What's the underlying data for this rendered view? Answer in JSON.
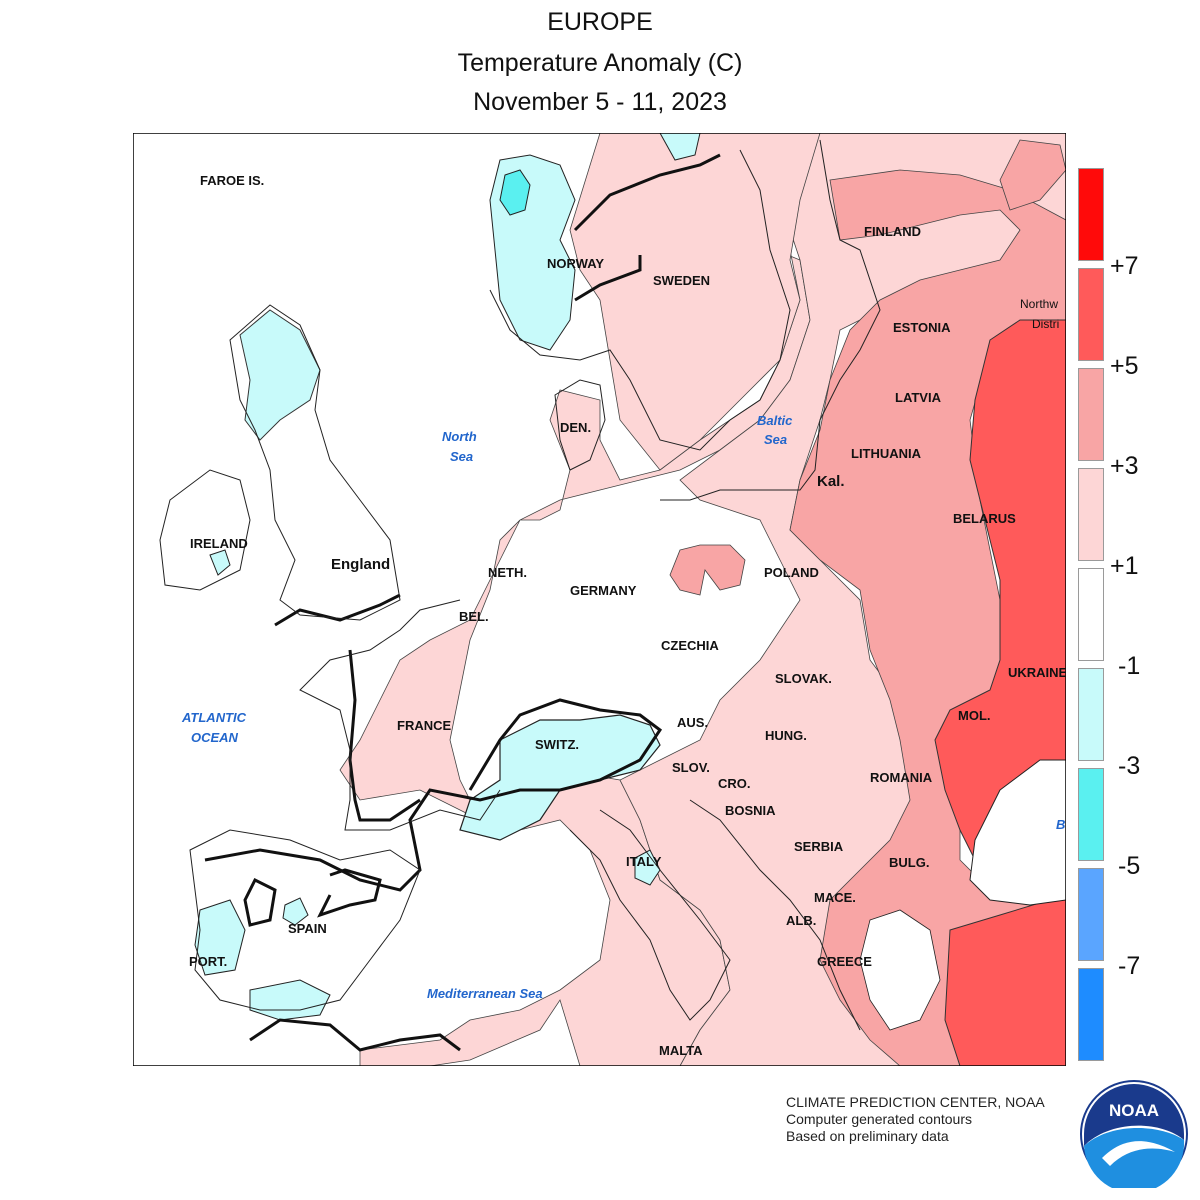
{
  "title": {
    "line1": "EUROPE",
    "line2": "Temperature Anomaly (C)",
    "line3": "November 5 - 11, 2023"
  },
  "legend": {
    "colors": [
      "#ff0a0a",
      "#ff5a5a",
      "#f8a5a5",
      "#fdd6d6",
      "#ffffff",
      "#c8fafa",
      "#5af0f0",
      "#5aa5ff",
      "#1e8cff"
    ],
    "labels": [
      "+7",
      "+5",
      "+3",
      "+1",
      "-1",
      "-3",
      "-5",
      "-7"
    ]
  },
  "map_labels": {
    "faroe": "FAROE IS.",
    "norway": "NORWAY",
    "sweden": "SWEDEN",
    "finland": "FINLAND",
    "estonia": "ESTONIA",
    "northwest": "Northw",
    "district": "Distri",
    "latvia": "LATVIA",
    "lithuania": "LITHUANIA",
    "kal": "Kal.",
    "belarus": "BELARUS",
    "den": "DEN.",
    "north_sea_1": "North",
    "north_sea_2": "Sea",
    "baltic_1": "Baltic",
    "baltic_2": "Sea",
    "ireland": "IRELAND",
    "england": "England",
    "neth": "NETH.",
    "germany": "GERMANY",
    "poland": "POLAND",
    "bel": "BEL.",
    "czechia": "CZECHIA",
    "slovak": "SLOVAK.",
    "ukraine": "UKRAINE",
    "atlantic_1": "ATLANTIC",
    "atlantic_2": "OCEAN",
    "france": "FRANCE",
    "switz": "SWITZ.",
    "aus": "AUS.",
    "mol": "MOL.",
    "hung": "HUNG.",
    "slov": "SLOV.",
    "romania": "ROMANIA",
    "cro": "CRO.",
    "bosnia": "BOSNIA",
    "black_sea": "B",
    "serbia": "SERBIA",
    "italy": "ITALY",
    "bulg": "BULG.",
    "spain": "SPAIN",
    "mace": "MACE.",
    "alb": "ALB.",
    "port": "PORT.",
    "greece": "GREECE",
    "med_sea": "Mediterranean Sea",
    "malta": "MALTA"
  },
  "credits": {
    "line1": "CLIMATE PREDICTION CENTER, NOAA",
    "line2": "Computer generated contours",
    "line3": "Based on preliminary data"
  },
  "logo": {
    "text": "NOAA"
  }
}
